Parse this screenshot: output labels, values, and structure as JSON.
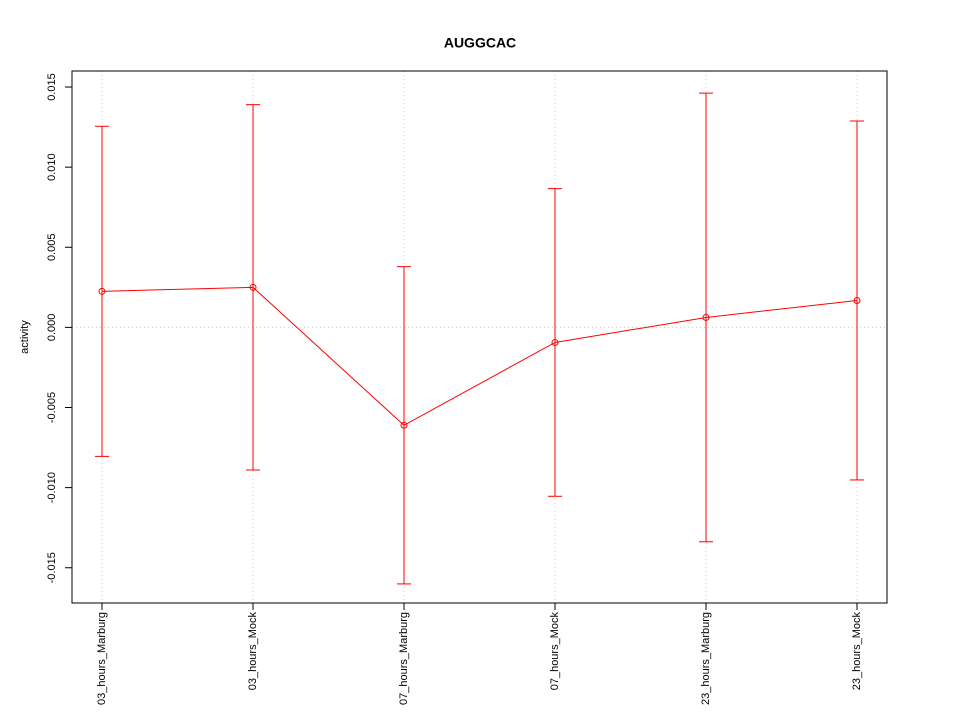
{
  "chart_data": {
    "type": "line",
    "title": "AUGGCAC",
    "y_label": "activity",
    "categories": [
      "03_hours_Marburg",
      "03_hours_Mock",
      "07_hours_Marburg",
      "07_hours_Mock",
      "23_hours_Marburg",
      "23_hours_Mock"
    ],
    "values": [
      0.00225,
      0.0025,
      -0.00611,
      -0.00094,
      0.00062,
      0.00168
    ],
    "errors": [
      0.0103,
      0.0114,
      0.0099,
      0.0096,
      0.014,
      0.0112
    ],
    "color": "#ff0000",
    "ylim": [
      -0.0172,
      0.016
    ],
    "yticks": [
      -0.015,
      {
        "value": -0.01,
        "label": "-0.010"
      },
      -0.005,
      {
        "value": 0,
        "label": "0.000"
      },
      0.005,
      {
        "value": 0.01,
        "label": "0.010"
      },
      0.015
    ],
    "reference_line": 0,
    "grid": true
  }
}
